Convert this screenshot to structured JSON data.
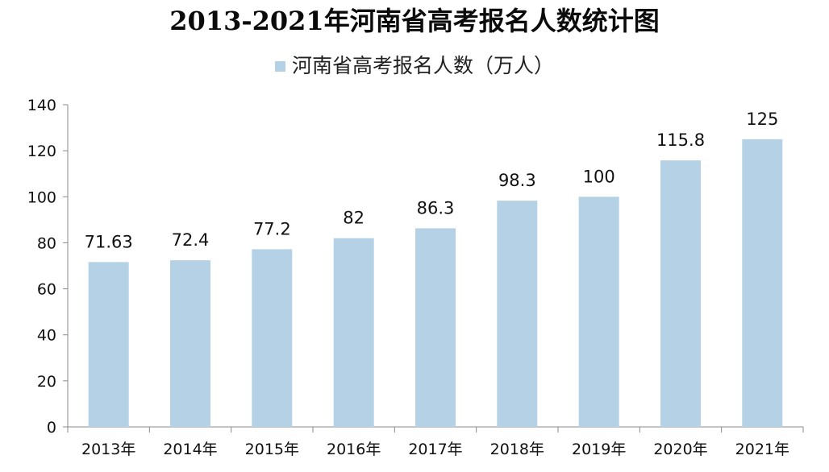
{
  "chart_data": {
    "type": "bar",
    "title": "2013-2021年河南省高考报名人数统计图",
    "categories": [
      "2013年",
      "2014年",
      "2015年",
      "2016年",
      "2017年",
      "2018年",
      "2019年",
      "2020年",
      "2021年"
    ],
    "series": [
      {
        "name": "河南省高考报名人数（万人）",
        "values": [
          71.63,
          72.4,
          77.2,
          82,
          86.3,
          98.3,
          100,
          115.8,
          125
        ],
        "labels": [
          "71.63",
          "72.4",
          "77.2",
          "82",
          "86.3",
          "98.3",
          "100",
          "115.8",
          "125"
        ],
        "color": "#b4d1e6"
      }
    ],
    "xlabel": "",
    "ylabel": "",
    "ylim": [
      0,
      140
    ],
    "yticks": [
      0,
      20,
      40,
      60,
      80,
      100,
      120,
      140
    ],
    "grid": false,
    "legend": "top-center"
  }
}
